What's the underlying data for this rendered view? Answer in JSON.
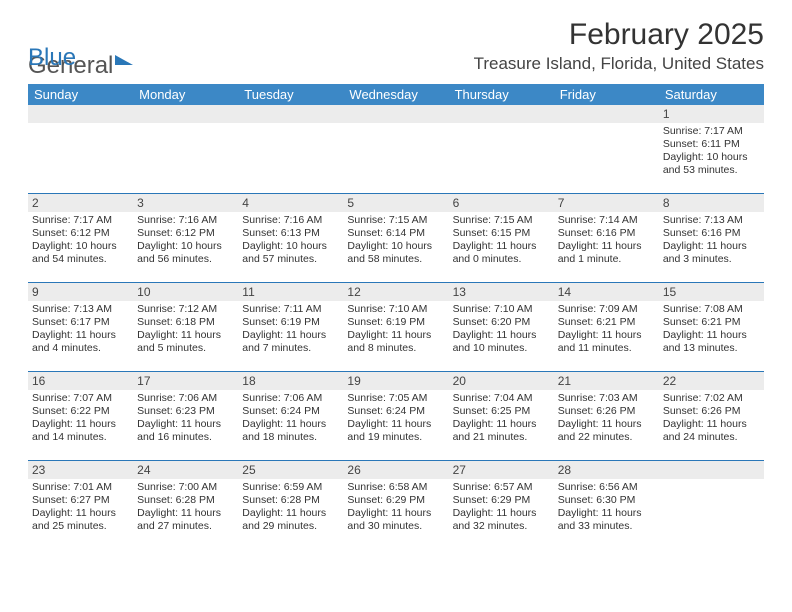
{
  "logo": {
    "word1": "General",
    "word2": "Blue"
  },
  "title": "February 2025",
  "location": "Treasure Island, Florida, United States",
  "colors": {
    "header_bar": "#3c88c6",
    "brand_blue": "#2a77b8",
    "daynum_bg": "#ececec",
    "text": "#333333",
    "page_bg": "#ffffff",
    "separator": "#2a77b8"
  },
  "dayHeaders": [
    "Sunday",
    "Monday",
    "Tuesday",
    "Wednesday",
    "Thursday",
    "Friday",
    "Saturday"
  ],
  "weeks": [
    {
      "nums": [
        "",
        "",
        "",
        "",
        "",
        "",
        "1"
      ],
      "cells": [
        "",
        "",
        "",
        "",
        "",
        "",
        "Sunrise: 7:17 AM\nSunset: 6:11 PM\nDaylight: 10 hours and 53 minutes."
      ]
    },
    {
      "nums": [
        "2",
        "3",
        "4",
        "5",
        "6",
        "7",
        "8"
      ],
      "cells": [
        "Sunrise: 7:17 AM\nSunset: 6:12 PM\nDaylight: 10 hours and 54 minutes.",
        "Sunrise: 7:16 AM\nSunset: 6:12 PM\nDaylight: 10 hours and 56 minutes.",
        "Sunrise: 7:16 AM\nSunset: 6:13 PM\nDaylight: 10 hours and 57 minutes.",
        "Sunrise: 7:15 AM\nSunset: 6:14 PM\nDaylight: 10 hours and 58 minutes.",
        "Sunrise: 7:15 AM\nSunset: 6:15 PM\nDaylight: 11 hours and 0 minutes.",
        "Sunrise: 7:14 AM\nSunset: 6:16 PM\nDaylight: 11 hours and 1 minute.",
        "Sunrise: 7:13 AM\nSunset: 6:16 PM\nDaylight: 11 hours and 3 minutes."
      ]
    },
    {
      "nums": [
        "9",
        "10",
        "11",
        "12",
        "13",
        "14",
        "15"
      ],
      "cells": [
        "Sunrise: 7:13 AM\nSunset: 6:17 PM\nDaylight: 11 hours and 4 minutes.",
        "Sunrise: 7:12 AM\nSunset: 6:18 PM\nDaylight: 11 hours and 5 minutes.",
        "Sunrise: 7:11 AM\nSunset: 6:19 PM\nDaylight: 11 hours and 7 minutes.",
        "Sunrise: 7:10 AM\nSunset: 6:19 PM\nDaylight: 11 hours and 8 minutes.",
        "Sunrise: 7:10 AM\nSunset: 6:20 PM\nDaylight: 11 hours and 10 minutes.",
        "Sunrise: 7:09 AM\nSunset: 6:21 PM\nDaylight: 11 hours and 11 minutes.",
        "Sunrise: 7:08 AM\nSunset: 6:21 PM\nDaylight: 11 hours and 13 minutes."
      ]
    },
    {
      "nums": [
        "16",
        "17",
        "18",
        "19",
        "20",
        "21",
        "22"
      ],
      "cells": [
        "Sunrise: 7:07 AM\nSunset: 6:22 PM\nDaylight: 11 hours and 14 minutes.",
        "Sunrise: 7:06 AM\nSunset: 6:23 PM\nDaylight: 11 hours and 16 minutes.",
        "Sunrise: 7:06 AM\nSunset: 6:24 PM\nDaylight: 11 hours and 18 minutes.",
        "Sunrise: 7:05 AM\nSunset: 6:24 PM\nDaylight: 11 hours and 19 minutes.",
        "Sunrise: 7:04 AM\nSunset: 6:25 PM\nDaylight: 11 hours and 21 minutes.",
        "Sunrise: 7:03 AM\nSunset: 6:26 PM\nDaylight: 11 hours and 22 minutes.",
        "Sunrise: 7:02 AM\nSunset: 6:26 PM\nDaylight: 11 hours and 24 minutes."
      ]
    },
    {
      "nums": [
        "23",
        "24",
        "25",
        "26",
        "27",
        "28",
        ""
      ],
      "cells": [
        "Sunrise: 7:01 AM\nSunset: 6:27 PM\nDaylight: 11 hours and 25 minutes.",
        "Sunrise: 7:00 AM\nSunset: 6:28 PM\nDaylight: 11 hours and 27 minutes.",
        "Sunrise: 6:59 AM\nSunset: 6:28 PM\nDaylight: 11 hours and 29 minutes.",
        "Sunrise: 6:58 AM\nSunset: 6:29 PM\nDaylight: 11 hours and 30 minutes.",
        "Sunrise: 6:57 AM\nSunset: 6:29 PM\nDaylight: 11 hours and 32 minutes.",
        "Sunrise: 6:56 AM\nSunset: 6:30 PM\nDaylight: 11 hours and 33 minutes.",
        ""
      ]
    }
  ]
}
